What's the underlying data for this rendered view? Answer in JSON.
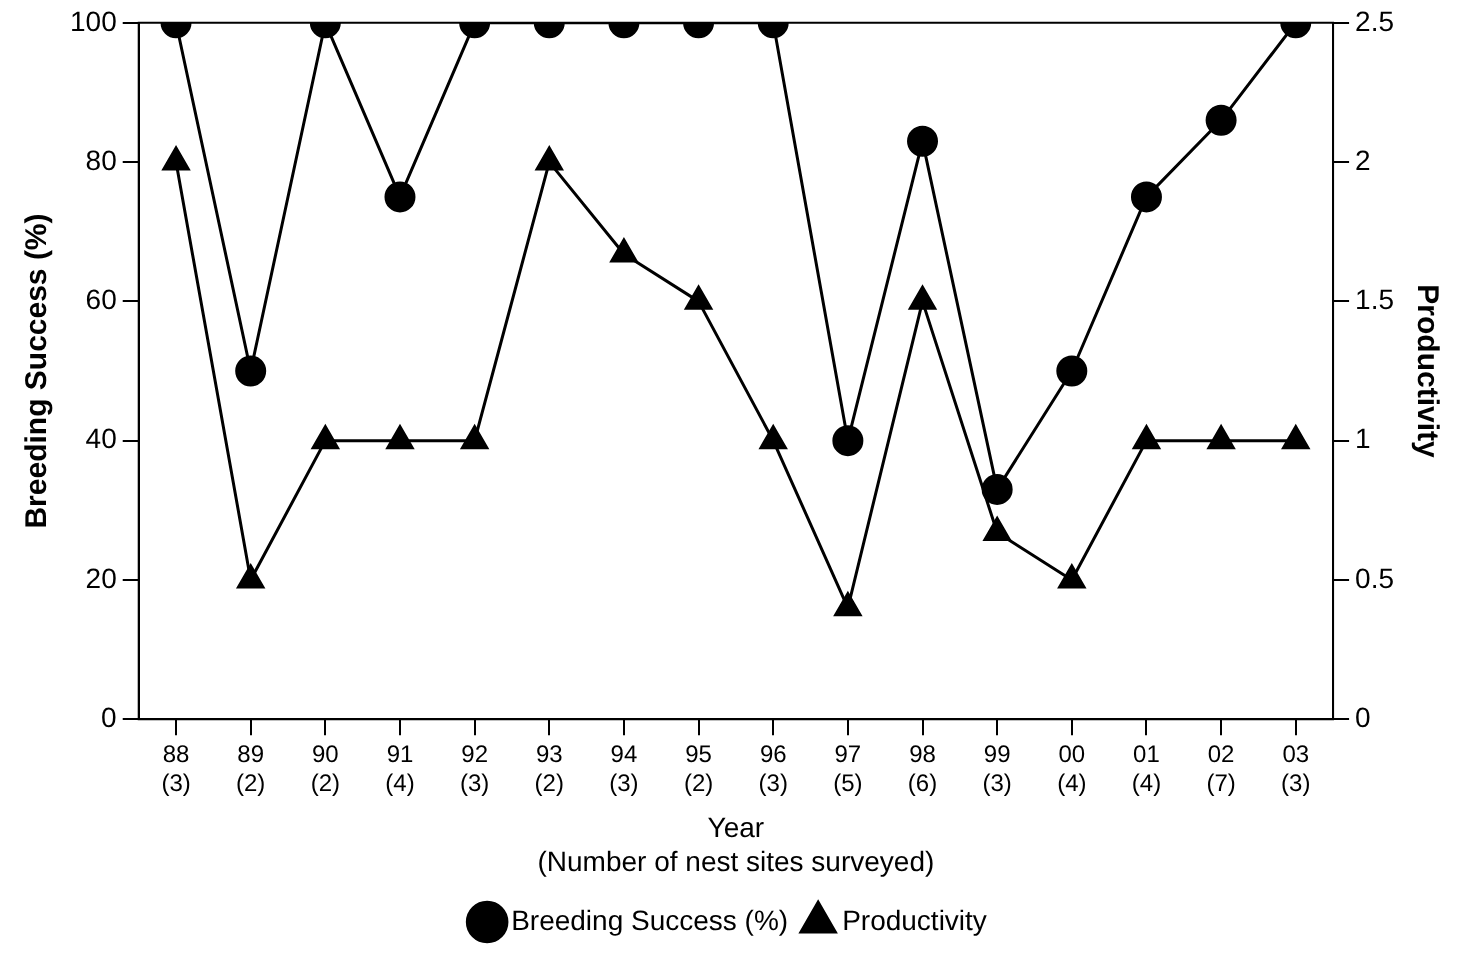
{
  "chart_data": {
    "type": "line",
    "categories": [
      "88\n(3)",
      "89\n(2)",
      "90\n(2)",
      "91\n(4)",
      "92\n(3)",
      "93\n(2)",
      "94\n(3)",
      "95\n(2)",
      "96\n(3)",
      "97\n(5)",
      "98\n(6)",
      "99\n(3)",
      "00\n(4)",
      "01\n(4)",
      "02\n(7)",
      "03\n(3)"
    ],
    "xlabel": "Year\n(Number of nest sites surveyed)",
    "ylabel": "Breeding Success (%)",
    "y2label": "Productivity",
    "series": [
      {
        "name": "Breeding Success (%)",
        "color": "#000000",
        "marker": "circle",
        "values": [
          100,
          50,
          100,
          75,
          100,
          100,
          100,
          100,
          100,
          40,
          83,
          33,
          50,
          75,
          86,
          100
        ]
      },
      {
        "name": "Productivity",
        "color": "#000000",
        "marker": "triangle",
        "axis": "y2",
        "values": [
          2,
          0.5,
          1,
          1,
          1,
          2,
          1.67,
          1.5,
          1,
          0.4,
          1.5,
          0.67,
          0.5,
          1,
          1,
          1
        ]
      }
    ],
    "ylim": [
      0,
      100
    ],
    "yticks": [
      0,
      20,
      40,
      60,
      80,
      100
    ],
    "y2lim": [
      0,
      2.5
    ],
    "y2ticks": [
      0,
      0.5,
      1,
      1.5,
      2,
      2.5
    ],
    "grid": false,
    "legend": "bottom",
    "line_style": "solid"
  }
}
